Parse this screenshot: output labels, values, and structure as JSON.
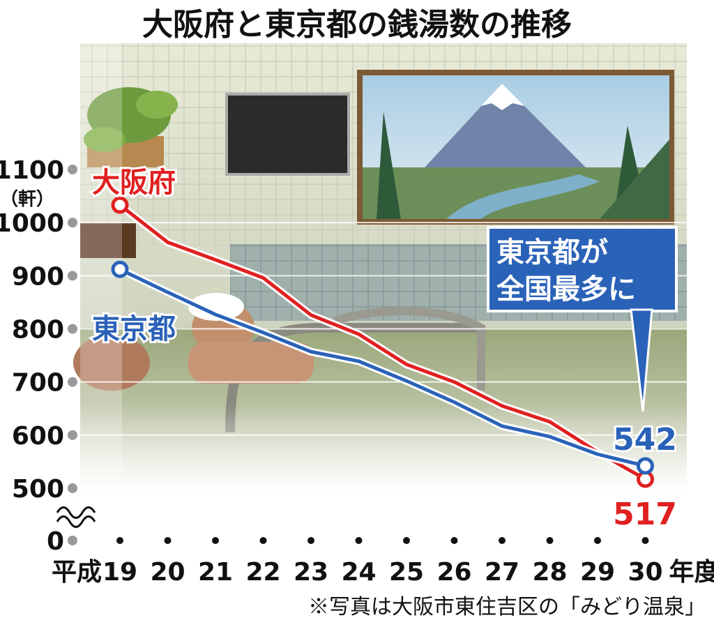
{
  "chart_data": {
    "type": "line",
    "title": "大阪府と東京都の銭湯数の推移",
    "unit": "（軒）",
    "x_prefix": "平成",
    "x_suffix": "年度",
    "categories": [
      "19",
      "20",
      "21",
      "22",
      "23",
      "24",
      "25",
      "26",
      "27",
      "28",
      "29",
      "30"
    ],
    "y_ticks": [
      0,
      500,
      600,
      700,
      800,
      900,
      1000,
      1100
    ],
    "y_break": [
      0,
      500
    ],
    "ylim": [
      500,
      1100
    ],
    "series": [
      {
        "name": "大阪府",
        "color": "#e02020",
        "values": [
          1033,
          963,
          930,
          896,
          826,
          790,
          733,
          700,
          655,
          625,
          568,
          517
        ]
      },
      {
        "name": "東京都",
        "color": "#2a62b8",
        "values": [
          912,
          869,
          827,
          793,
          757,
          739,
          702,
          662,
          617,
          597,
          564,
          542
        ]
      }
    ],
    "end_labels": {
      "tokyo": "542",
      "osaka": "517"
    },
    "callout": {
      "line1": "東京都が",
      "line2": "全国最多に",
      "color": "#2a62b8"
    },
    "background": "public bathhouse photo"
  },
  "note": "※写真は大阪市東住吉区の「みどり温泉」"
}
